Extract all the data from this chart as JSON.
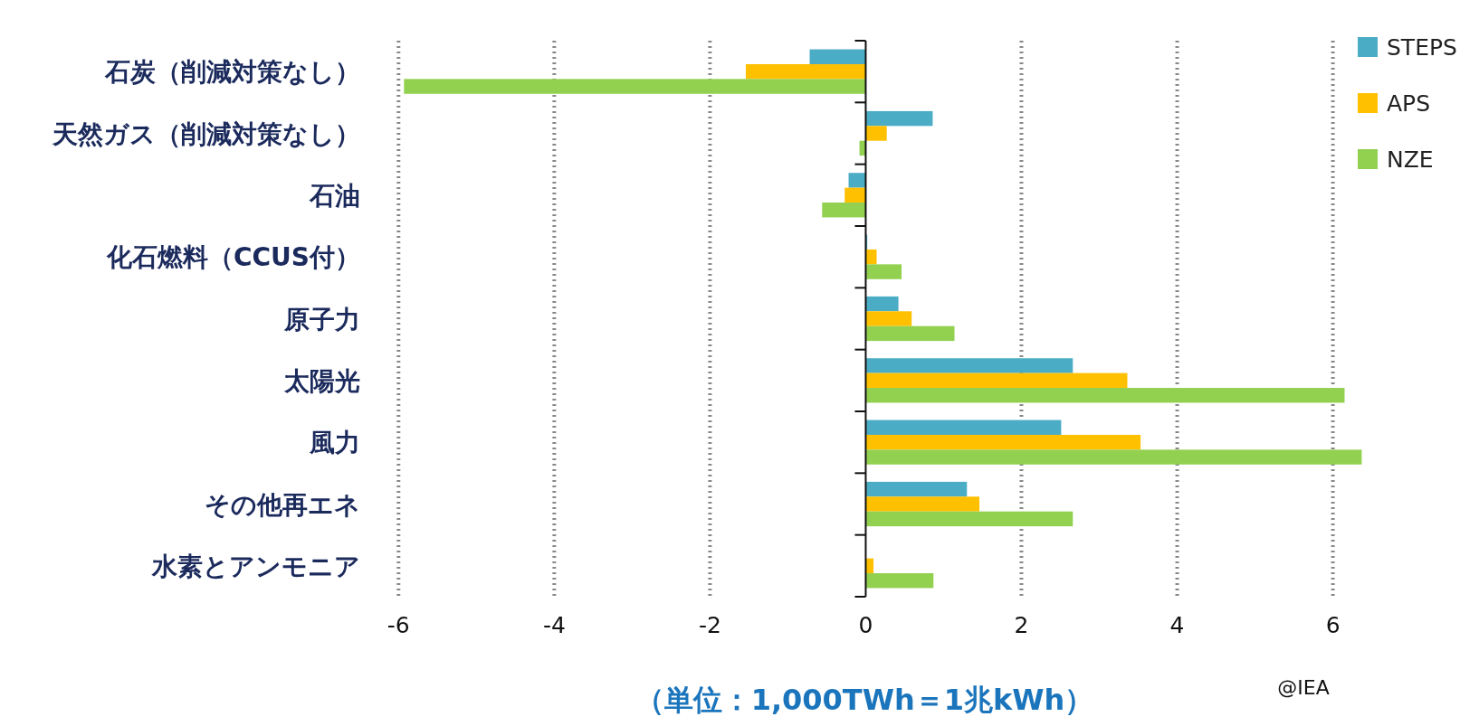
{
  "chart_data": {
    "type": "bar",
    "orientation": "horizontal",
    "categories": [
      "石炭（削減対策なし）",
      "天然ガス（削減対策なし）",
      "石油",
      "化石燃料（CCUS付）",
      "原子力",
      "太陽光",
      "風力",
      "その他再エネ",
      "水素とアンモニア"
    ],
    "series": [
      {
        "name": "STEPS",
        "color": "#4bacc6",
        "values": [
          -0.72,
          0.86,
          -0.22,
          0.02,
          0.42,
          2.66,
          2.51,
          1.3,
          0
        ]
      },
      {
        "name": "APS",
        "color": "#ffc000",
        "values": [
          -1.54,
          0.27,
          -0.27,
          0.14,
          0.59,
          3.36,
          3.53,
          1.46,
          0.1
        ]
      },
      {
        "name": "NZE",
        "color": "#92d050",
        "values": [
          -5.93,
          -0.08,
          -0.56,
          0.46,
          1.14,
          6.15,
          6.37,
          2.66,
          0.87
        ]
      }
    ],
    "xlim": [
      -6.05,
      6.4
    ],
    "xticks": [
      -6,
      -4,
      -2,
      0,
      2,
      4,
      6
    ],
    "grid": "x",
    "legend": "top right",
    "annotations": [
      "（単位：1,000TWh＝1兆kWh）",
      "@IEA"
    ]
  }
}
